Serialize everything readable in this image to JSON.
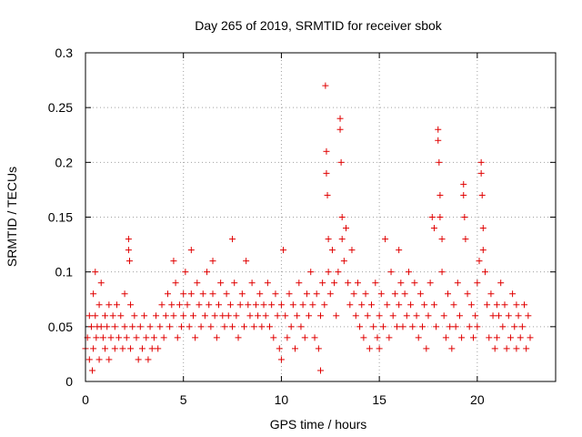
{
  "chart_data": {
    "type": "scatter",
    "title": "Day 265 of 2019, SRMTID for receiver sbok",
    "xlabel": "GPS time / hours",
    "ylabel": "SRMTID / TECUs",
    "xlim": [
      0,
      24
    ],
    "ylim": [
      0,
      0.3
    ],
    "x_ticks": [
      0,
      5,
      10,
      15,
      20
    ],
    "x_tick_labels": [
      "0",
      "5",
      "10",
      "15",
      "20"
    ],
    "y_ticks": [
      0,
      0.05,
      0.1,
      0.15,
      0.2,
      0.25,
      0.3
    ],
    "y_tick_labels": [
      "0",
      "0.05",
      "0.1",
      "0.15",
      "0.2",
      "0.25",
      "0.3"
    ],
    "grid": true,
    "marker": "+",
    "marker_color": "#e00000",
    "series": [
      {
        "name": "SRMTID",
        "points": [
          [
            0.0,
            0.03
          ],
          [
            0.1,
            0.04
          ],
          [
            0.2,
            0.02
          ],
          [
            0.2,
            0.06
          ],
          [
            0.3,
            0.05
          ],
          [
            0.35,
            0.01
          ],
          [
            0.4,
            0.08
          ],
          [
            0.4,
            0.03
          ],
          [
            0.5,
            0.06
          ],
          [
            0.5,
            0.1
          ],
          [
            0.55,
            0.04
          ],
          [
            0.6,
            0.05
          ],
          [
            0.7,
            0.07
          ],
          [
            0.7,
            0.02
          ],
          [
            0.8,
            0.05
          ],
          [
            0.8,
            0.09
          ],
          [
            0.9,
            0.04
          ],
          [
            1.0,
            0.06
          ],
          [
            1.0,
            0.03
          ],
          [
            1.1,
            0.05
          ],
          [
            1.2,
            0.07
          ],
          [
            1.2,
            0.02
          ],
          [
            1.3,
            0.04
          ],
          [
            1.4,
            0.06
          ],
          [
            1.5,
            0.05
          ],
          [
            1.5,
            0.03
          ],
          [
            1.6,
            0.07
          ],
          [
            1.7,
            0.04
          ],
          [
            1.8,
            0.06
          ],
          [
            1.9,
            0.03
          ],
          [
            2.0,
            0.05
          ],
          [
            2.0,
            0.08
          ],
          [
            2.1,
            0.04
          ],
          [
            2.2,
            0.13
          ],
          [
            2.2,
            0.12
          ],
          [
            2.25,
            0.11
          ],
          [
            2.3,
            0.07
          ],
          [
            2.3,
            0.03
          ],
          [
            2.4,
            0.05
          ],
          [
            2.5,
            0.06
          ],
          [
            2.6,
            0.04
          ],
          [
            2.7,
            0.02
          ],
          [
            2.8,
            0.05
          ],
          [
            2.9,
            0.03
          ],
          [
            3.0,
            0.06
          ],
          [
            3.1,
            0.04
          ],
          [
            3.2,
            0.02
          ],
          [
            3.3,
            0.05
          ],
          [
            3.4,
            0.03
          ],
          [
            3.5,
            0.04
          ],
          [
            3.6,
            0.06
          ],
          [
            3.7,
            0.03
          ],
          [
            3.8,
            0.05
          ],
          [
            3.9,
            0.07
          ],
          [
            4.0,
            0.04
          ],
          [
            4.1,
            0.06
          ],
          [
            4.2,
            0.08
          ],
          [
            4.3,
            0.05
          ],
          [
            4.4,
            0.07
          ],
          [
            4.5,
            0.11
          ],
          [
            4.5,
            0.06
          ],
          [
            4.6,
            0.09
          ],
          [
            4.7,
            0.04
          ],
          [
            4.8,
            0.07
          ],
          [
            4.9,
            0.05
          ],
          [
            5.0,
            0.08
          ],
          [
            5.0,
            0.06
          ],
          [
            5.1,
            0.1
          ],
          [
            5.2,
            0.07
          ],
          [
            5.3,
            0.05
          ],
          [
            5.4,
            0.12
          ],
          [
            5.4,
            0.08
          ],
          [
            5.5,
            0.06
          ],
          [
            5.6,
            0.04
          ],
          [
            5.7,
            0.09
          ],
          [
            5.8,
            0.07
          ],
          [
            5.9,
            0.05
          ],
          [
            6.0,
            0.08
          ],
          [
            6.1,
            0.06
          ],
          [
            6.2,
            0.1
          ],
          [
            6.3,
            0.07
          ],
          [
            6.4,
            0.05
          ],
          [
            6.5,
            0.08
          ],
          [
            6.5,
            0.11
          ],
          [
            6.6,
            0.06
          ],
          [
            6.7,
            0.04
          ],
          [
            6.8,
            0.07
          ],
          [
            6.9,
            0.09
          ],
          [
            7.0,
            0.06
          ],
          [
            7.1,
            0.05
          ],
          [
            7.2,
            0.08
          ],
          [
            7.3,
            0.06
          ],
          [
            7.4,
            0.07
          ],
          [
            7.5,
            0.13
          ],
          [
            7.5,
            0.05
          ],
          [
            7.6,
            0.09
          ],
          [
            7.7,
            0.06
          ],
          [
            7.8,
            0.04
          ],
          [
            7.9,
            0.07
          ],
          [
            8.0,
            0.08
          ],
          [
            8.1,
            0.05
          ],
          [
            8.2,
            0.11
          ],
          [
            8.3,
            0.07
          ],
          [
            8.4,
            0.06
          ],
          [
            8.5,
            0.09
          ],
          [
            8.6,
            0.05
          ],
          [
            8.7,
            0.07
          ],
          [
            8.8,
            0.06
          ],
          [
            8.9,
            0.08
          ],
          [
            9.0,
            0.05
          ],
          [
            9.1,
            0.07
          ],
          [
            9.2,
            0.06
          ],
          [
            9.3,
            0.09
          ],
          [
            9.4,
            0.05
          ],
          [
            9.5,
            0.07
          ],
          [
            9.6,
            0.04
          ],
          [
            9.7,
            0.08
          ],
          [
            9.8,
            0.06
          ],
          [
            9.9,
            0.03
          ],
          [
            10.0,
            0.07
          ],
          [
            10.0,
            0.02
          ],
          [
            10.1,
            0.12
          ],
          [
            10.2,
            0.06
          ],
          [
            10.3,
            0.04
          ],
          [
            10.4,
            0.08
          ],
          [
            10.5,
            0.05
          ],
          [
            10.6,
            0.07
          ],
          [
            10.7,
            0.03
          ],
          [
            10.8,
            0.06
          ],
          [
            10.9,
            0.09
          ],
          [
            11.0,
            0.05
          ],
          [
            11.1,
            0.07
          ],
          [
            11.2,
            0.04
          ],
          [
            11.3,
            0.08
          ],
          [
            11.4,
            0.06
          ],
          [
            11.5,
            0.1
          ],
          [
            11.6,
            0.07
          ],
          [
            11.7,
            0.04
          ],
          [
            11.8,
            0.08
          ],
          [
            11.9,
            0.03
          ],
          [
            12.0,
            0.06
          ],
          [
            12.0,
            0.01
          ],
          [
            12.1,
            0.09
          ],
          [
            12.2,
            0.07
          ],
          [
            12.25,
            0.27
          ],
          [
            12.3,
            0.21
          ],
          [
            12.3,
            0.19
          ],
          [
            12.35,
            0.17
          ],
          [
            12.4,
            0.13
          ],
          [
            12.4,
            0.1
          ],
          [
            12.5,
            0.08
          ],
          [
            12.6,
            0.12
          ],
          [
            12.7,
            0.09
          ],
          [
            12.8,
            0.06
          ],
          [
            12.9,
            0.1
          ],
          [
            13.0,
            0.24
          ],
          [
            13.0,
            0.23
          ],
          [
            13.05,
            0.2
          ],
          [
            13.1,
            0.15
          ],
          [
            13.1,
            0.13
          ],
          [
            13.2,
            0.11
          ],
          [
            13.3,
            0.14
          ],
          [
            13.4,
            0.09
          ],
          [
            13.5,
            0.07
          ],
          [
            13.6,
            0.12
          ],
          [
            13.7,
            0.08
          ],
          [
            13.8,
            0.06
          ],
          [
            13.9,
            0.09
          ],
          [
            14.0,
            0.05
          ],
          [
            14.1,
            0.07
          ],
          [
            14.2,
            0.04
          ],
          [
            14.3,
            0.08
          ],
          [
            14.4,
            0.06
          ],
          [
            14.5,
            0.03
          ],
          [
            14.6,
            0.07
          ],
          [
            14.7,
            0.05
          ],
          [
            14.8,
            0.09
          ],
          [
            14.9,
            0.04
          ],
          [
            15.0,
            0.06
          ],
          [
            15.0,
            0.03
          ],
          [
            15.1,
            0.08
          ],
          [
            15.2,
            0.05
          ],
          [
            15.3,
            0.13
          ],
          [
            15.4,
            0.07
          ],
          [
            15.5,
            0.04
          ],
          [
            15.6,
            0.1
          ],
          [
            15.7,
            0.06
          ],
          [
            15.8,
            0.08
          ],
          [
            15.9,
            0.05
          ],
          [
            16.0,
            0.12
          ],
          [
            16.0,
            0.07
          ],
          [
            16.1,
            0.09
          ],
          [
            16.2,
            0.05
          ],
          [
            16.3,
            0.08
          ],
          [
            16.4,
            0.06
          ],
          [
            16.5,
            0.1
          ],
          [
            16.6,
            0.07
          ],
          [
            16.7,
            0.05
          ],
          [
            16.8,
            0.09
          ],
          [
            16.9,
            0.06
          ],
          [
            17.0,
            0.04
          ],
          [
            17.1,
            0.08
          ],
          [
            17.2,
            0.05
          ],
          [
            17.3,
            0.07
          ],
          [
            17.4,
            0.03
          ],
          [
            17.5,
            0.06
          ],
          [
            17.6,
            0.09
          ],
          [
            17.7,
            0.15
          ],
          [
            17.8,
            0.14
          ],
          [
            17.8,
            0.07
          ],
          [
            17.9,
            0.05
          ],
          [
            18.0,
            0.23
          ],
          [
            18.0,
            0.22
          ],
          [
            18.05,
            0.2
          ],
          [
            18.1,
            0.17
          ],
          [
            18.1,
            0.15
          ],
          [
            18.2,
            0.13
          ],
          [
            18.2,
            0.1
          ],
          [
            18.3,
            0.06
          ],
          [
            18.4,
            0.04
          ],
          [
            18.5,
            0.08
          ],
          [
            18.6,
            0.05
          ],
          [
            18.7,
            0.03
          ],
          [
            18.8,
            0.07
          ],
          [
            18.9,
            0.05
          ],
          [
            19.0,
            0.09
          ],
          [
            19.1,
            0.06
          ],
          [
            19.2,
            0.04
          ],
          [
            19.3,
            0.18
          ],
          [
            19.3,
            0.17
          ],
          [
            19.35,
            0.15
          ],
          [
            19.4,
            0.13
          ],
          [
            19.5,
            0.08
          ],
          [
            19.6,
            0.05
          ],
          [
            19.7,
            0.07
          ],
          [
            19.8,
            0.04
          ],
          [
            19.9,
            0.06
          ],
          [
            20.0,
            0.09
          ],
          [
            20.0,
            0.05
          ],
          [
            20.1,
            0.11
          ],
          [
            20.2,
            0.2
          ],
          [
            20.2,
            0.19
          ],
          [
            20.25,
            0.17
          ],
          [
            20.3,
            0.14
          ],
          [
            20.3,
            0.12
          ],
          [
            20.4,
            0.1
          ],
          [
            20.5,
            0.07
          ],
          [
            20.6,
            0.04
          ],
          [
            20.7,
            0.08
          ],
          [
            20.8,
            0.06
          ],
          [
            20.9,
            0.03
          ],
          [
            21.0,
            0.07
          ],
          [
            21.0,
            0.04
          ],
          [
            21.1,
            0.06
          ],
          [
            21.2,
            0.09
          ],
          [
            21.3,
            0.05
          ],
          [
            21.4,
            0.07
          ],
          [
            21.5,
            0.03
          ],
          [
            21.6,
            0.06
          ],
          [
            21.7,
            0.04
          ],
          [
            21.8,
            0.08
          ],
          [
            21.9,
            0.05
          ],
          [
            22.0,
            0.07
          ],
          [
            22.0,
            0.03
          ],
          [
            22.1,
            0.06
          ],
          [
            22.2,
            0.04
          ],
          [
            22.3,
            0.05
          ],
          [
            22.4,
            0.07
          ],
          [
            22.5,
            0.03
          ],
          [
            22.6,
            0.06
          ],
          [
            22.7,
            0.04
          ]
        ]
      }
    ]
  }
}
